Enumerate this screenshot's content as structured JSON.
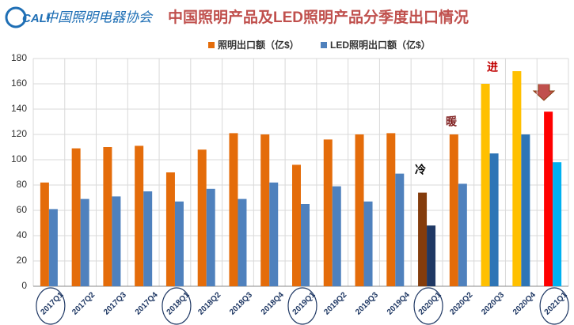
{
  "header": {
    "logo": "CALI",
    "org": "中国照明电器协会"
  },
  "chart_data": {
    "type": "bar",
    "title": "中国照明产品及LED照明产品分季度出口情况",
    "categories": [
      "2017Q1",
      "2017Q2",
      "2017Q3",
      "2017Q4",
      "2018Q1",
      "2018Q2",
      "2018Q3",
      "2018Q4",
      "2019Q1",
      "2019Q2",
      "2019Q3",
      "2019Q4",
      "2020Q1",
      "2020Q2",
      "2020Q3",
      "2020Q4",
      "2021Q1"
    ],
    "series": [
      {
        "name": "照明出口额（亿$）",
        "color": "#e46c0a",
        "values": [
          82,
          109,
          110,
          111,
          90,
          108,
          121,
          120,
          96,
          116,
          120,
          121,
          74,
          120,
          160,
          170,
          138
        ],
        "colors": [
          "#e46c0a",
          "#e46c0a",
          "#e46c0a",
          "#e46c0a",
          "#e46c0a",
          "#e46c0a",
          "#e46c0a",
          "#e46c0a",
          "#e46c0a",
          "#e46c0a",
          "#e46c0a",
          "#e46c0a",
          "#843c0c",
          "#e46c0a",
          "#ffc000",
          "#ffc000",
          "#ff0000"
        ]
      },
      {
        "name": "LED照明出口额（亿$）",
        "color": "#4f81bd",
        "values": [
          61,
          69,
          71,
          75,
          67,
          77,
          69,
          82,
          65,
          79,
          67,
          89,
          48,
          81,
          105,
          120,
          98
        ],
        "colors": [
          "#4f81bd",
          "#4f81bd",
          "#4f81bd",
          "#4f81bd",
          "#4f81bd",
          "#4f81bd",
          "#4f81bd",
          "#4f81bd",
          "#4f81bd",
          "#4f81bd",
          "#4f81bd",
          "#4f81bd",
          "#1f3864",
          "#4f81bd",
          "#2e75b6",
          "#2e75b6",
          "#00b0f0"
        ]
      }
    ],
    "annotations": [
      "冷",
      "暖",
      "进"
    ],
    "ylim": [
      0,
      180
    ],
    "yticks": [
      0,
      20,
      40,
      60,
      80,
      100,
      120,
      140,
      160,
      180
    ],
    "grid": true
  }
}
